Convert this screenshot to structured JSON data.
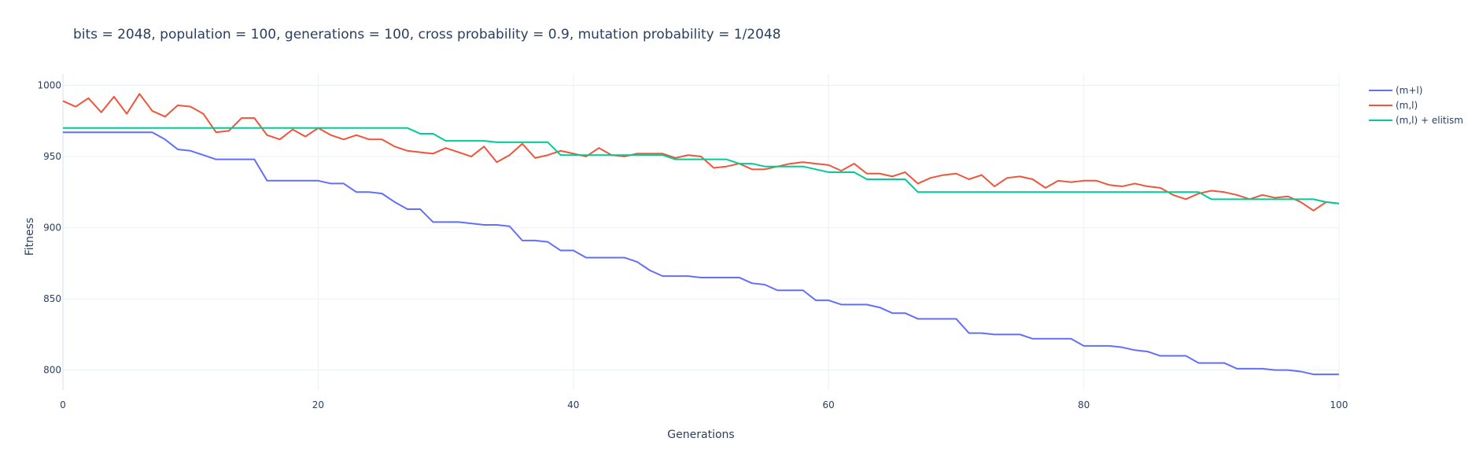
{
  "chart_data": {
    "type": "line",
    "title": "bits = 2048, population = 100, generations = 100, cross probability = 0.9, mutation probability = 1/2048",
    "xlabel": "Generations",
    "ylabel": "Fitness",
    "xlim": [
      0,
      100
    ],
    "ylim": [
      786,
      1008
    ],
    "x_ticks": [
      0,
      20,
      40,
      60,
      80,
      100
    ],
    "y_ticks": [
      800,
      850,
      900,
      950,
      1000
    ],
    "grid": true,
    "legend_position": "top-right",
    "series": [
      {
        "name": "(m+l)",
        "color": "#636efa",
        "values": [
          967,
          967,
          967,
          967,
          967,
          967,
          967,
          967,
          962,
          955,
          954,
          951,
          948,
          948,
          948,
          948,
          933,
          933,
          933,
          933,
          933,
          931,
          931,
          925,
          925,
          924,
          918,
          913,
          913,
          904,
          904,
          904,
          903,
          902,
          902,
          901,
          891,
          891,
          890,
          884,
          884,
          879,
          879,
          879,
          879,
          876,
          870,
          866,
          866,
          866,
          865,
          865,
          865,
          865,
          861,
          860,
          856,
          856,
          856,
          849,
          849,
          846,
          846,
          846,
          844,
          840,
          840,
          836,
          836,
          836,
          836,
          826,
          826,
          825,
          825,
          825,
          822,
          822,
          822,
          822,
          817,
          817,
          817,
          816,
          814,
          813,
          810,
          810,
          810,
          805,
          805,
          805,
          801,
          801,
          801,
          800,
          800,
          799,
          797,
          797,
          797
        ]
      },
      {
        "name": "(m,l)",
        "color": "#ef553b",
        "values": [
          989,
          985,
          991,
          981,
          992,
          980,
          994,
          982,
          978,
          986,
          985,
          980,
          967,
          968,
          977,
          977,
          965,
          962,
          969,
          964,
          970,
          965,
          962,
          965,
          962,
          962,
          957,
          954,
          953,
          952,
          956,
          953,
          950,
          957,
          946,
          951,
          959,
          949,
          951,
          954,
          952,
          950,
          956,
          951,
          950,
          952,
          952,
          952,
          949,
          951,
          950,
          942,
          943,
          945,
          941,
          941,
          943,
          945,
          946,
          945,
          944,
          940,
          945,
          938,
          938,
          936,
          939,
          931,
          935,
          937,
          938,
          934,
          937,
          929,
          935,
          936,
          934,
          928,
          933,
          932,
          933,
          933,
          930,
          929,
          931,
          929,
          928,
          923,
          920,
          924,
          926,
          925,
          923,
          920,
          923,
          921,
          922,
          918,
          912,
          918,
          917
        ]
      },
      {
        "name": "(m,l) + elitism",
        "color": "#00cc96",
        "values": [
          970,
          970,
          970,
          970,
          970,
          970,
          970,
          970,
          970,
          970,
          970,
          970,
          970,
          970,
          970,
          970,
          970,
          970,
          970,
          970,
          970,
          970,
          970,
          970,
          970,
          970,
          970,
          970,
          966,
          966,
          961,
          961,
          961,
          961,
          960,
          960,
          960,
          960,
          960,
          951,
          951,
          951,
          951,
          951,
          951,
          951,
          951,
          951,
          948,
          948,
          948,
          948,
          948,
          945,
          945,
          943,
          943,
          943,
          943,
          941,
          939,
          939,
          939,
          934,
          934,
          934,
          934,
          925,
          925,
          925,
          925,
          925,
          925,
          925,
          925,
          925,
          925,
          925,
          925,
          925,
          925,
          925,
          925,
          925,
          925,
          925,
          925,
          925,
          925,
          925,
          920,
          920,
          920,
          920,
          920,
          920,
          920,
          920,
          920,
          918,
          917
        ]
      }
    ]
  }
}
